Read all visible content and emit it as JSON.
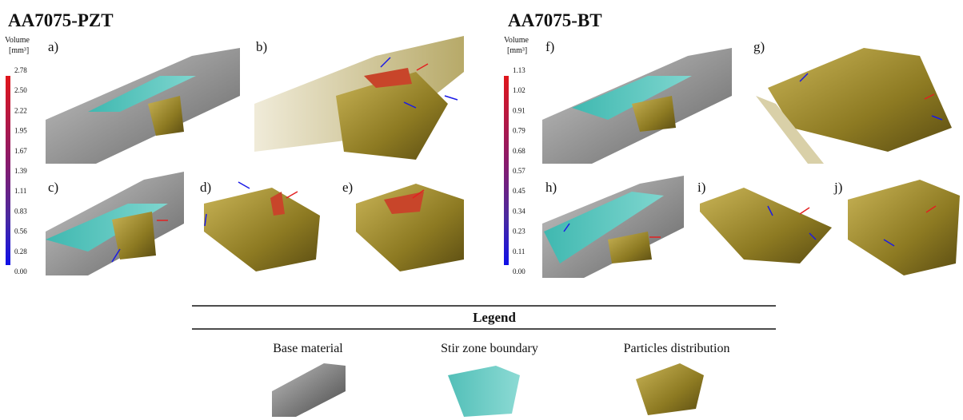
{
  "left": {
    "title": "AA7075-PZT",
    "colorbar": {
      "label": "Volume",
      "unit": "[mm³]",
      "ticks": [
        "2.78",
        "2.50",
        "2.22",
        "1.95",
        "1.67",
        "1.39",
        "1.11",
        "0.83",
        "0.56",
        "0.28",
        "0.00"
      ]
    },
    "panels": [
      "a)",
      "b)",
      "c)",
      "d)",
      "e)"
    ]
  },
  "right": {
    "title": "AA7075-BT",
    "colorbar": {
      "label": "Volume",
      "unit": "[mm³]",
      "ticks": [
        "1.13",
        "1.02",
        "0.91",
        "0.79",
        "0.68",
        "0.57",
        "0.45",
        "0.34",
        "0.23",
        "0.11",
        "0.00"
      ]
    },
    "panels": [
      "f)",
      "g)",
      "h)",
      "i)",
      "j)"
    ]
  },
  "legend": {
    "title": "Legend",
    "items": [
      "Base material",
      "Stir zone boundary",
      "Particles distribution"
    ]
  }
}
